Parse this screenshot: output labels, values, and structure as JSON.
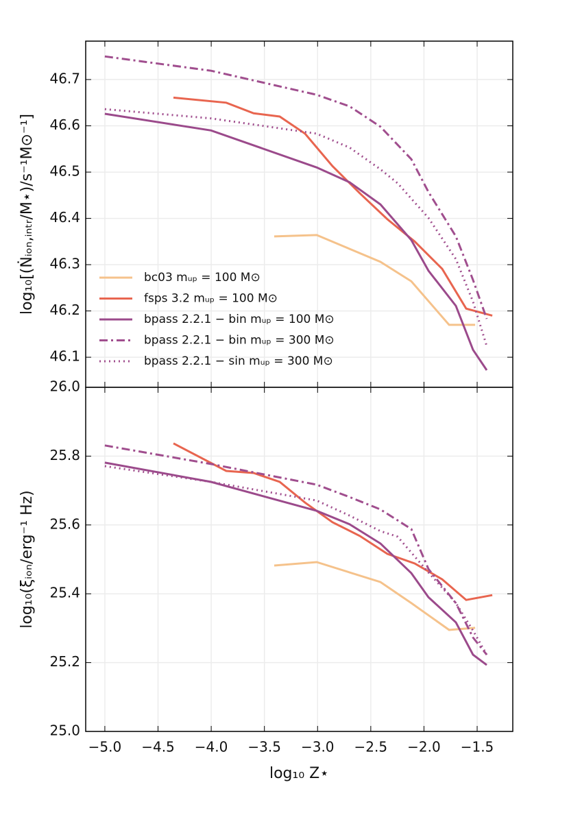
{
  "chart_data": [
    {
      "type": "line",
      "ylabel": "log₁₀[(Ṅᵢₒₙ,ᵢₙₜᵣ/M⋆)/s⁻¹M⊙⁻¹]",
      "ylim": [
        46.035,
        46.783
      ],
      "yticks": [
        46.1,
        46.2,
        46.3,
        46.4,
        46.5,
        46.6,
        46.7
      ],
      "xlim": [
        -5.18,
        -1.165
      ],
      "grid": true,
      "legend": "lower left",
      "series": [
        {
          "name": "bc03  mᵤₚ = 100 M⊙",
          "color": "#f5c28b",
          "linestyle": "solid",
          "x": [
            -3.408,
            -3.008,
            -2.409,
            -2.119,
            -1.764,
            -1.519
          ],
          "values": [
            46.361,
            46.364,
            46.306,
            46.264,
            46.17,
            46.17
          ]
        },
        {
          "name": "fsps 3.2 mᵤₚ = 100 M⊙",
          "color": "#e8654f",
          "linestyle": "solid",
          "x": [
            -4.355,
            -3.859,
            -3.601,
            -3.356,
            -3.118,
            -2.86,
            -2.602,
            -2.344,
            -2.087,
            -1.829,
            -1.603,
            -1.358
          ],
          "values": [
            46.661,
            46.65,
            46.627,
            46.62,
            46.583,
            46.513,
            46.454,
            46.398,
            46.35,
            46.291,
            46.205,
            46.19
          ]
        },
        {
          "name": "bpass 2.2.1 − bin mᵤₚ = 100 M⊙",
          "color": "#9b4a8b",
          "linestyle": "solid",
          "x": [
            -5.0,
            -4.001,
            -3.008,
            -2.699,
            -2.409,
            -2.119,
            -1.958,
            -1.7,
            -1.539,
            -1.41
          ],
          "values": [
            46.626,
            46.59,
            46.51,
            46.478,
            46.43,
            46.353,
            46.287,
            46.211,
            46.116,
            46.072
          ]
        },
        {
          "name": "bpass 2.2.1 − bin mᵤₚ = 300 M⊙",
          "color": "#a04e8e",
          "linestyle": "dashdot",
          "x": [
            -5.0,
            -4.001,
            -3.008,
            -2.699,
            -2.409,
            -2.119,
            -1.958,
            -1.7,
            -1.539,
            -1.41
          ],
          "values": [
            46.75,
            46.719,
            46.667,
            46.642,
            46.598,
            46.528,
            46.457,
            46.361,
            46.267,
            46.183
          ]
        },
        {
          "name": "bpass 2.2.1 − sin mᵤₚ = 300 M⊙",
          "color": "#a04e8e",
          "linestyle": "dotted",
          "x": [
            -5.0,
            -4.001,
            -3.008,
            -2.699,
            -2.409,
            -2.248,
            -1.958,
            -1.7,
            -1.539,
            -1.41
          ],
          "values": [
            46.636,
            46.616,
            46.583,
            46.553,
            46.506,
            46.476,
            46.401,
            46.312,
            46.22,
            46.124
          ]
        }
      ]
    },
    {
      "type": "line",
      "ylabel": "log₁₀(ξᵢₒₙ/erg⁻¹ Hz)",
      "xlabel": "log₁₀ Z⋆",
      "ylim": [
        25.0,
        26.0
      ],
      "yticks": [
        {
          "value": 25.0,
          "label": "25.0"
        },
        25.2,
        25.4,
        25.6,
        25.8,
        {
          "value": 26.0,
          "label": "26.0"
        }
      ],
      "xlim": [
        -5.18,
        -1.165
      ],
      "xticks": [
        {
          "value": -5.0,
          "label": "−5.0"
        },
        {
          "value": -4.5,
          "label": "−4.5"
        },
        {
          "value": -4.0,
          "label": "−4.0"
        },
        {
          "value": -3.5,
          "label": "−3.5"
        },
        {
          "value": -3.0,
          "label": "−3.0"
        },
        {
          "value": -2.5,
          "label": "−2.5"
        },
        {
          "value": -2.0,
          "label": "−2.0"
        },
        {
          "value": -1.5,
          "label": "−1.5"
        }
      ],
      "grid": true,
      "series": [
        {
          "color": "#f5c28b",
          "linestyle": "solid",
          "x": [
            -3.408,
            -3.008,
            -2.409,
            -2.119,
            -1.764,
            -1.519
          ],
          "values": [
            25.482,
            25.492,
            25.434,
            25.373,
            25.295,
            25.301
          ]
        },
        {
          "color": "#e8654f",
          "linestyle": "solid",
          "x": [
            -4.355,
            -3.859,
            -3.601,
            -3.356,
            -3.118,
            -2.86,
            -2.602,
            -2.344,
            -2.087,
            -1.829,
            -1.603,
            -1.358
          ],
          "values": [
            25.837,
            25.757,
            25.751,
            25.725,
            25.665,
            25.608,
            25.568,
            25.516,
            25.488,
            25.442,
            25.382,
            25.396
          ]
        },
        {
          "color": "#9b4a8b",
          "linestyle": "solid",
          "x": [
            -5.0,
            -4.001,
            -3.008,
            -2.699,
            -2.409,
            -2.119,
            -1.958,
            -1.7,
            -1.539,
            -1.41
          ],
          "values": [
            25.781,
            25.725,
            25.641,
            25.602,
            25.546,
            25.46,
            25.39,
            25.317,
            25.223,
            25.193
          ]
        },
        {
          "color": "#a04e8e",
          "linestyle": "dashdot",
          "x": [
            -5.0,
            -4.001,
            -3.008,
            -2.699,
            -2.409,
            -2.119,
            -1.958,
            -1.7,
            -1.539,
            -1.41
          ],
          "values": [
            25.831,
            25.777,
            25.717,
            25.681,
            25.645,
            25.588,
            25.472,
            25.373,
            25.273,
            25.223
          ]
        },
        {
          "color": "#a04e8e",
          "linestyle": "dotted",
          "x": [
            -5.0,
            -4.001,
            -3.008,
            -2.699,
            -2.409,
            -2.248,
            -1.958,
            -1.7,
            -1.539,
            -1.41
          ],
          "values": [
            25.771,
            25.725,
            25.671,
            25.627,
            25.582,
            25.566,
            25.462,
            25.373,
            25.293,
            25.223
          ]
        }
      ]
    }
  ]
}
